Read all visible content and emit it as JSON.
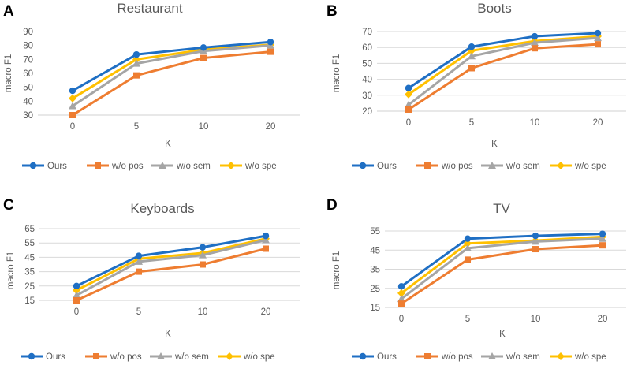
{
  "series_style": [
    {
      "name": "Ours",
      "color": "#1f6fc4",
      "marker": "circle"
    },
    {
      "name": "w/o pos",
      "color": "#ee7d31",
      "marker": "square"
    },
    {
      "name": "w/o sem",
      "color": "#a5a5a5",
      "marker": "triangle"
    },
    {
      "name": "w/o spe",
      "color": "#ffc000",
      "marker": "diamond"
    }
  ],
  "chart_data": [
    {
      "panel": "A",
      "type": "line",
      "title": "Restaurant",
      "xlabel": "K",
      "ylabel": "macro F1",
      "categories": [
        "0",
        "5",
        "10",
        "20"
      ],
      "ylim": [
        30,
        90
      ],
      "yticks": [
        30,
        40,
        50,
        60,
        70,
        80,
        90
      ],
      "grid": false,
      "legend": "bottom",
      "series": [
        {
          "name": "Ours",
          "values": [
            47.5,
            73.5,
            78.5,
            82.5
          ]
        },
        {
          "name": "w/o pos",
          "values": [
            30,
            58.5,
            71,
            75.5
          ]
        },
        {
          "name": "w/o sem",
          "values": [
            36.5,
            67,
            76,
            80
          ]
        },
        {
          "name": "w/o spe",
          "values": [
            42,
            70,
            77,
            80.5
          ]
        }
      ]
    },
    {
      "panel": "B",
      "type": "line",
      "title": "Boots",
      "xlabel": "K",
      "ylabel": "macro F1",
      "categories": [
        "0",
        "5",
        "10",
        "20"
      ],
      "ylim": [
        20,
        70
      ],
      "yticks": [
        20,
        30,
        40,
        50,
        60,
        70
      ],
      "grid": true,
      "legend": "bottom",
      "series": [
        {
          "name": "Ours",
          "values": [
            34.5,
            60.5,
            67,
            69
          ]
        },
        {
          "name": "w/o pos",
          "values": [
            21,
            47,
            59.5,
            62
          ]
        },
        {
          "name": "w/o sem",
          "values": [
            24,
            54.5,
            63,
            66
          ]
        },
        {
          "name": "w/o spe",
          "values": [
            30.5,
            58,
            64,
            67
          ]
        }
      ]
    },
    {
      "panel": "C",
      "type": "line",
      "title": "Keyboards",
      "xlabel": "K",
      "ylabel": "macro F1",
      "categories": [
        "0",
        "5",
        "10",
        "20"
      ],
      "ylim": [
        15,
        65
      ],
      "yticks": [
        15,
        25,
        35,
        45,
        55,
        65
      ],
      "grid": true,
      "legend": "bottom",
      "series": [
        {
          "name": "Ours",
          "values": [
            25,
            46,
            52,
            60
          ]
        },
        {
          "name": "w/o pos",
          "values": [
            15,
            35,
            40,
            51
          ]
        },
        {
          "name": "w/o sem",
          "values": [
            18.5,
            42,
            46.5,
            57
          ]
        },
        {
          "name": "w/o spe",
          "values": [
            22,
            44,
            48,
            58
          ]
        }
      ]
    },
    {
      "panel": "D",
      "type": "line",
      "title": "TV",
      "xlabel": "K",
      "ylabel": "macro F1",
      "categories": [
        "0",
        "5",
        "10",
        "20"
      ],
      "ylim": [
        15,
        55
      ],
      "yticks": [
        15,
        25,
        35,
        45,
        55
      ],
      "grid": true,
      "legend": "bottom",
      "series": [
        {
          "name": "Ours",
          "values": [
            26,
            51,
            52.5,
            53.5
          ]
        },
        {
          "name": "w/o pos",
          "values": [
            17,
            40,
            45.5,
            47.5
          ]
        },
        {
          "name": "w/o sem",
          "values": [
            19.5,
            46,
            49.5,
            51
          ]
        },
        {
          "name": "w/o spe",
          "values": [
            22.5,
            48.5,
            50,
            52
          ]
        }
      ]
    }
  ]
}
